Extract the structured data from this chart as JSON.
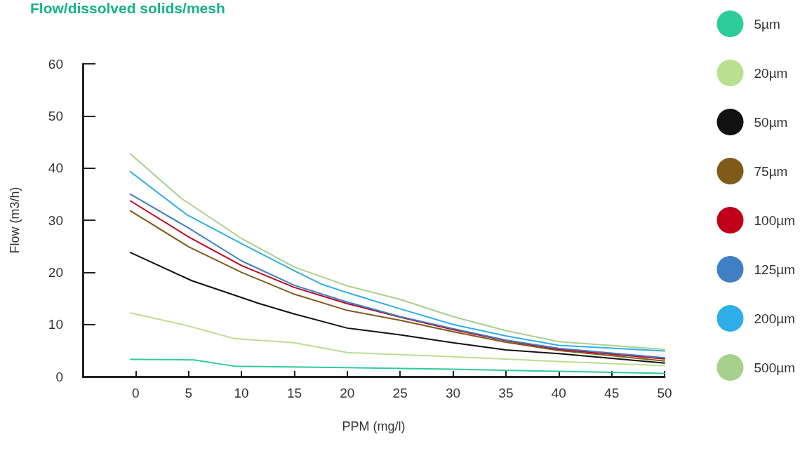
{
  "chart_data": {
    "type": "line",
    "title": "Flow/dissolved solids/mesh",
    "xlabel": "PPM (mg/l)",
    "ylabel": "Flow (m3/h)",
    "xlim": [
      -5,
      50
    ],
    "xticks": [
      0,
      5,
      10,
      15,
      20,
      25,
      30,
      35,
      40,
      45,
      50
    ],
    "ylim": [
      0,
      60
    ],
    "yticks": [
      0,
      10,
      20,
      30,
      40,
      50,
      60
    ],
    "legend": "right",
    "marker": "none",
    "line_style": "solid",
    "series": [
      {
        "name": "5µm",
        "color": "#2ecc9a",
        "x": [
          -0.5,
          5.5,
          9.3,
          20,
          30,
          40,
          50
        ],
        "values": [
          3.3,
          3.2,
          2,
          1.7,
          1.4,
          1,
          0.6
        ]
      },
      {
        "name": "20µm",
        "color": "#b9e08f",
        "x": [
          -0.5,
          5,
          9.3,
          15,
          20,
          30,
          40,
          50
        ],
        "values": [
          12.2,
          9.7,
          7.3,
          6.5,
          4.6,
          3.8,
          2.9,
          2.1
        ]
      },
      {
        "name": "50µm",
        "color": "#111111",
        "x": [
          -0.5,
          5.3,
          11.7,
          15,
          20,
          25,
          30,
          35,
          40,
          50
        ],
        "values": [
          23.8,
          18.4,
          14,
          12,
          9.3,
          8,
          6.5,
          5.1,
          4.4,
          2.6
        ]
      },
      {
        "name": "75µm",
        "color": "#7f5a18",
        "x": [
          -0.5,
          5,
          10,
          15,
          20,
          25,
          30,
          35,
          40,
          50
        ],
        "values": [
          31.8,
          24.9,
          20,
          15.8,
          12.7,
          10.8,
          8.6,
          6.6,
          5,
          3
        ]
      },
      {
        "name": "100µm",
        "color": "#c0001a",
        "x": [
          -0.5,
          5,
          10,
          15,
          20,
          25,
          30,
          35,
          40,
          50
        ],
        "values": [
          33.7,
          26.8,
          21.3,
          17.1,
          14,
          11.4,
          9,
          6.9,
          5.2,
          3.4
        ]
      },
      {
        "name": "125µm",
        "color": "#3f7fc4",
        "x": [
          -0.5,
          5,
          10,
          15,
          20,
          25,
          30,
          35,
          40,
          50
        ],
        "values": [
          35,
          28.5,
          22.2,
          17.5,
          14.3,
          11.5,
          9.2,
          7,
          5.4,
          3.6
        ]
      },
      {
        "name": "200µm",
        "color": "#2eaee8",
        "x": [
          -0.5,
          4.8,
          10,
          15,
          17.5,
          20,
          25,
          30,
          35,
          40,
          50
        ],
        "values": [
          39.3,
          31.1,
          25.5,
          20.3,
          17.8,
          16.1,
          13,
          10,
          7.8,
          6,
          4.9
        ]
      },
      {
        "name": "500µm",
        "color": "#a8d08d",
        "x": [
          -0.5,
          4.3,
          10,
          15,
          20,
          25,
          30,
          35,
          40,
          50
        ],
        "values": [
          42.7,
          34.2,
          26.5,
          21,
          17.4,
          14.8,
          11.5,
          8.8,
          6.7,
          5.2
        ]
      }
    ]
  }
}
